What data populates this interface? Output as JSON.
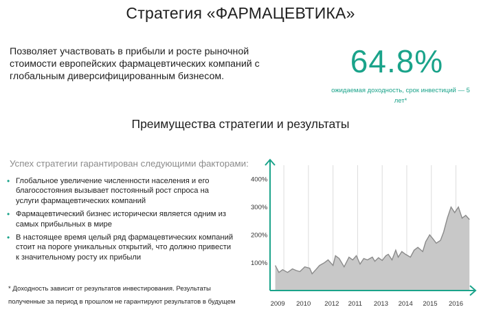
{
  "header": {
    "title": "Стратегия «ФАРМАЦЕВТИКА»"
  },
  "intro": {
    "text": "Позволяет участвовать в прибыли и росте рыночной стоимости европейских фармацевтических компаний с глобальным диверсифицированным бизнесом."
  },
  "highlight": {
    "value": "64.8%",
    "caption": "ожидаемая доходность, срок инвестиций — 5 лет*",
    "color": "#1aa38a"
  },
  "section": {
    "title": "Преимущества стратегии и результаты"
  },
  "factors": {
    "title": "Успех стратегии гарантирован следующими факторами:",
    "bullet_icon": "bullet-dot-icon",
    "items": [
      "Глобальное увеличение численности населения и его благосостояния вызывает постоянный рост спроса на услуги фармацевтических компаний",
      "Фармацевтический бизнес исторически является одним из самых прибыльных в мире",
      "В настоящее время целый ряд фармацевтических компаний стоит на пороге уникальных открытий, что должно привести к значительному росту их прибыли"
    ]
  },
  "footnote": {
    "text": "* Доходность зависит от результатов инвестирования. Результаты полученные за период в прошлом не гарантируют результатов в будущем"
  },
  "chart_data": {
    "type": "area",
    "title": "",
    "xlabel": "",
    "ylabel": "",
    "x_ticks": [
      "2009",
      "2010",
      "2012",
      "2011",
      "2013",
      "2014",
      "2015",
      "2016"
    ],
    "y_ticks": [
      "100%",
      "200%",
      "300%",
      "400%"
    ],
    "ylim": [
      0,
      450
    ],
    "xlim": [
      2008.9,
      2016.95
    ],
    "grid": "vertical",
    "fill_color": "#c8c8c8",
    "line_color": "#8a8a8a",
    "axis_color": "#1aa38a",
    "series": [
      {
        "x": [
          2009.0,
          2009.15,
          2009.3,
          2009.5,
          2009.7,
          2009.85,
          2010.0,
          2010.2,
          2010.4,
          2010.5,
          2010.65,
          2010.8,
          2011.0,
          2011.15,
          2011.35,
          2011.45,
          2011.6,
          2011.8,
          2012.0,
          2012.15,
          2012.3,
          2012.45,
          2012.6,
          2012.75,
          2012.95,
          2013.05,
          2013.2,
          2013.35,
          2013.5,
          2013.6,
          2013.75,
          2013.9,
          2014.0,
          2014.15,
          2014.3,
          2014.5,
          2014.65,
          2014.8,
          2015.0,
          2015.12,
          2015.28,
          2015.42,
          2015.55,
          2015.72,
          2015.85,
          2016.0,
          2016.15,
          2016.3,
          2016.45,
          2016.6,
          2016.75,
          2016.9
        ],
        "y": [
          90,
          65,
          75,
          65,
          78,
          72,
          68,
          85,
          80,
          60,
          75,
          90,
          100,
          110,
          90,
          125,
          115,
          85,
          120,
          110,
          125,
          95,
          115,
          110,
          120,
          105,
          118,
          108,
          125,
          130,
          110,
          145,
          120,
          140,
          130,
          120,
          145,
          155,
          140,
          175,
          200,
          185,
          170,
          180,
          210,
          260,
          300,
          280,
          300,
          260,
          270,
          255
        ]
      }
    ]
  }
}
